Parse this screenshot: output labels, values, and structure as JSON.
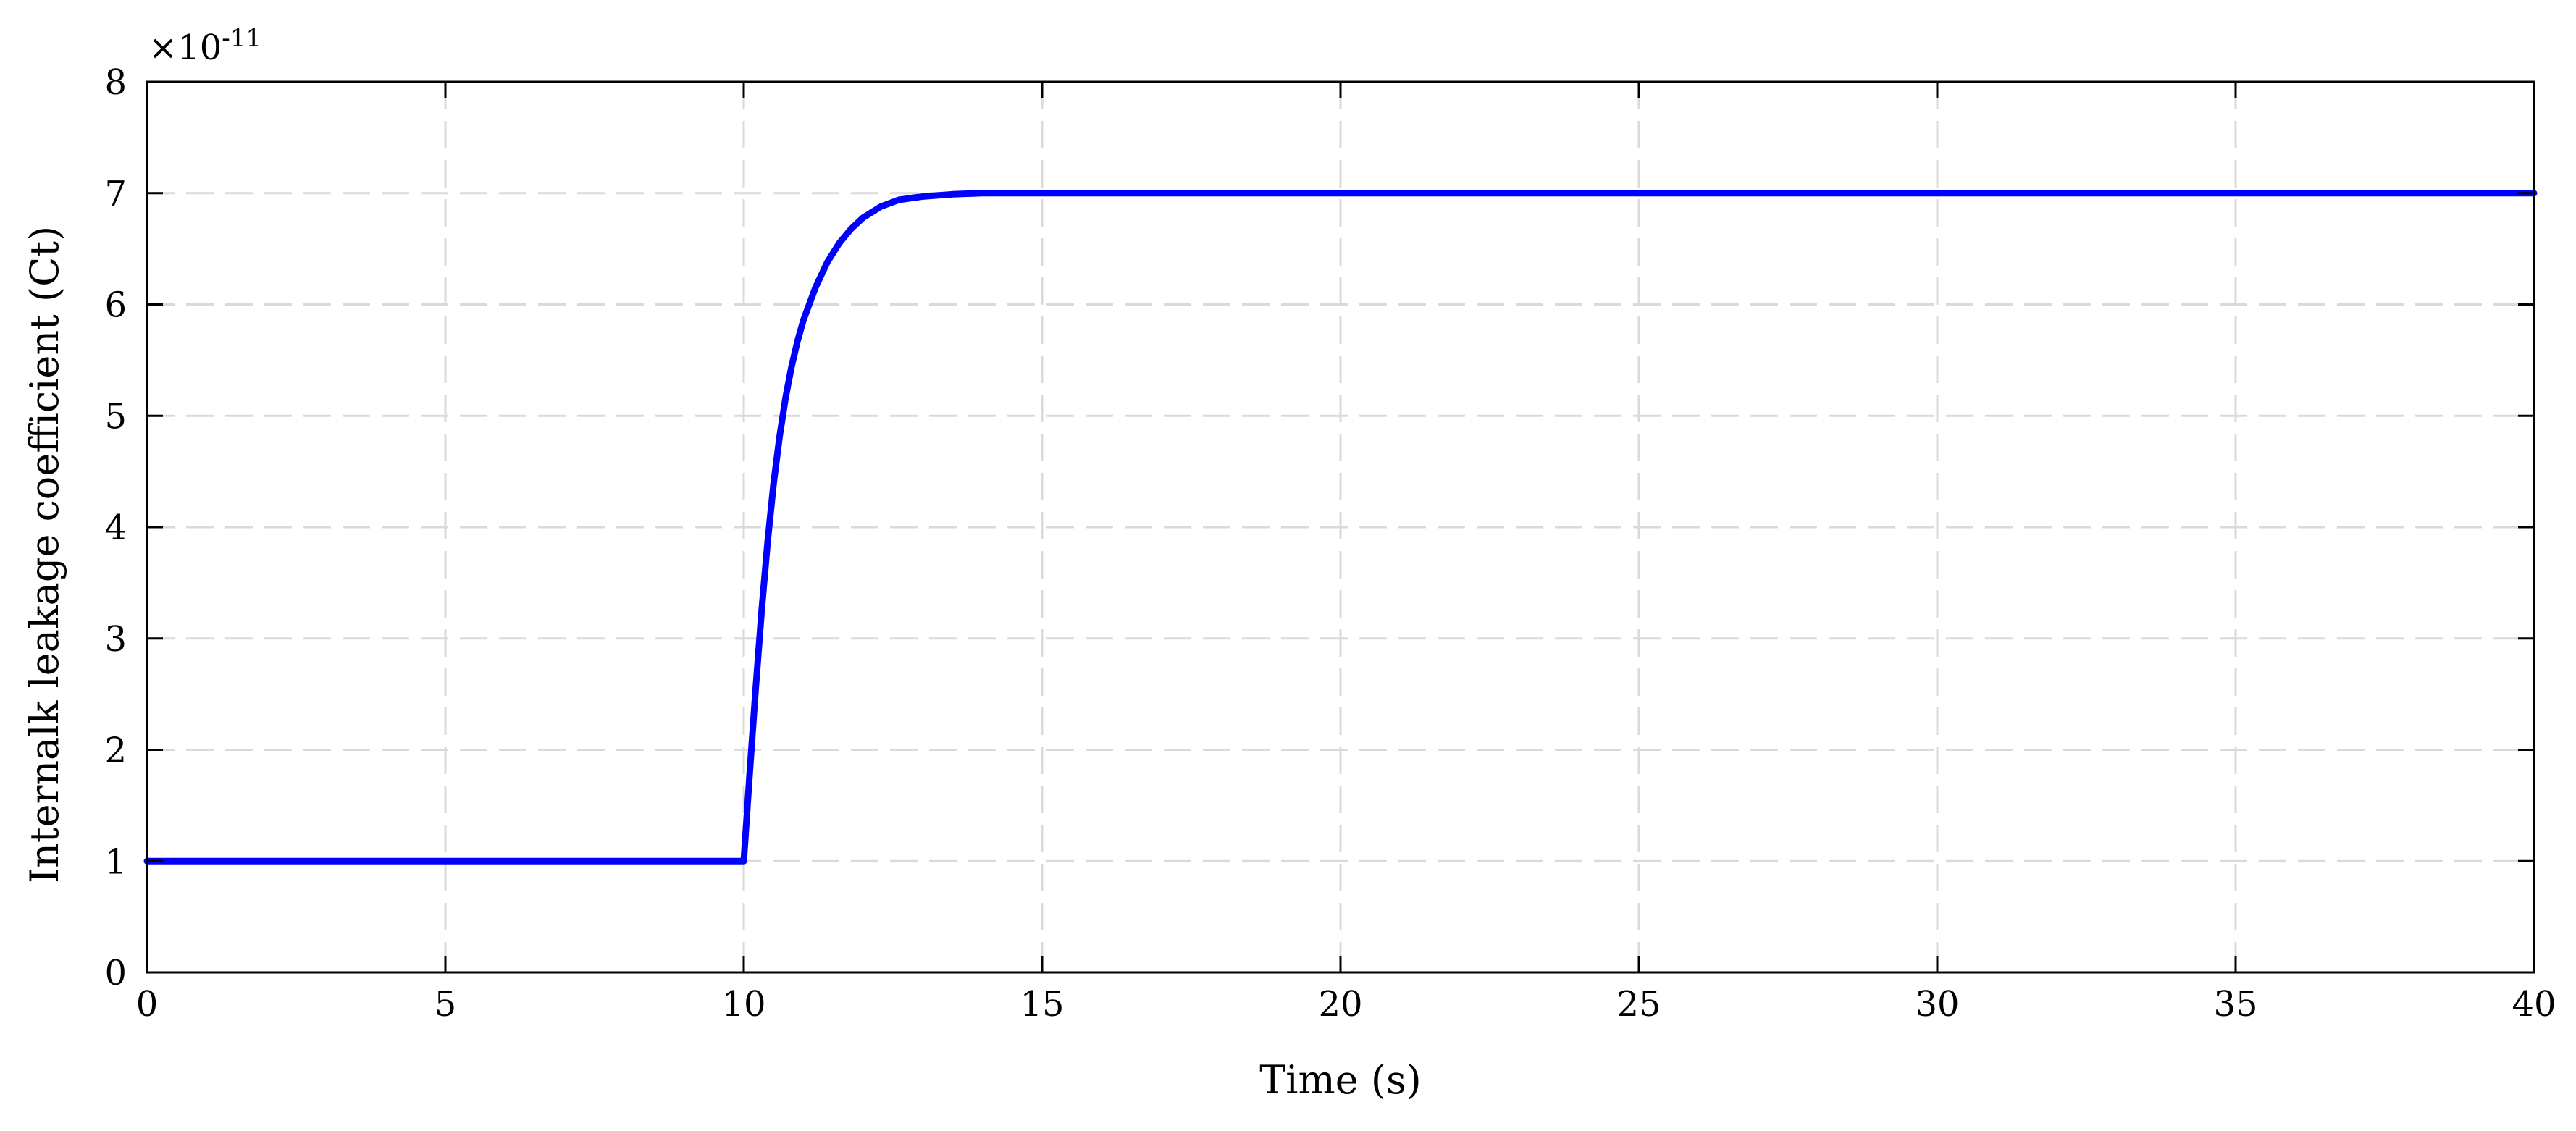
{
  "chart_data": {
    "type": "line",
    "title": "",
    "xlabel": "Time (s)",
    "ylabel": "Internalk leakage coefficient (Ct)",
    "y_multiplier": {
      "base": "×10",
      "exponent": "-11"
    },
    "xlim": [
      0,
      40
    ],
    "ylim": [
      0,
      8
    ],
    "xticks": [
      "0",
      "5",
      "10",
      "15",
      "20",
      "25",
      "30",
      "35",
      "40"
    ],
    "yticks": [
      "0",
      "1",
      "2",
      "3",
      "4",
      "5",
      "6",
      "7",
      "8"
    ],
    "grid": true,
    "series": [
      {
        "color": "#0000ff",
        "x": [
          0,
          10,
          10.1,
          10.2,
          10.3,
          10.4,
          10.5,
          10.6,
          10.7,
          10.8,
          10.9,
          11,
          11.2,
          11.4,
          11.6,
          11.8,
          12,
          12.3,
          12.6,
          13,
          13.5,
          14,
          15,
          20,
          25,
          30,
          35,
          40
        ],
        "y": [
          1,
          1,
          1.79,
          2.55,
          3.25,
          3.87,
          4.39,
          4.81,
          5.16,
          5.44,
          5.67,
          5.86,
          6.15,
          6.38,
          6.55,
          6.68,
          6.78,
          6.88,
          6.94,
          6.97,
          6.99,
          7.0,
          7.0,
          7.0,
          7.0,
          7.0,
          7.0,
          7.0
        ]
      }
    ]
  }
}
